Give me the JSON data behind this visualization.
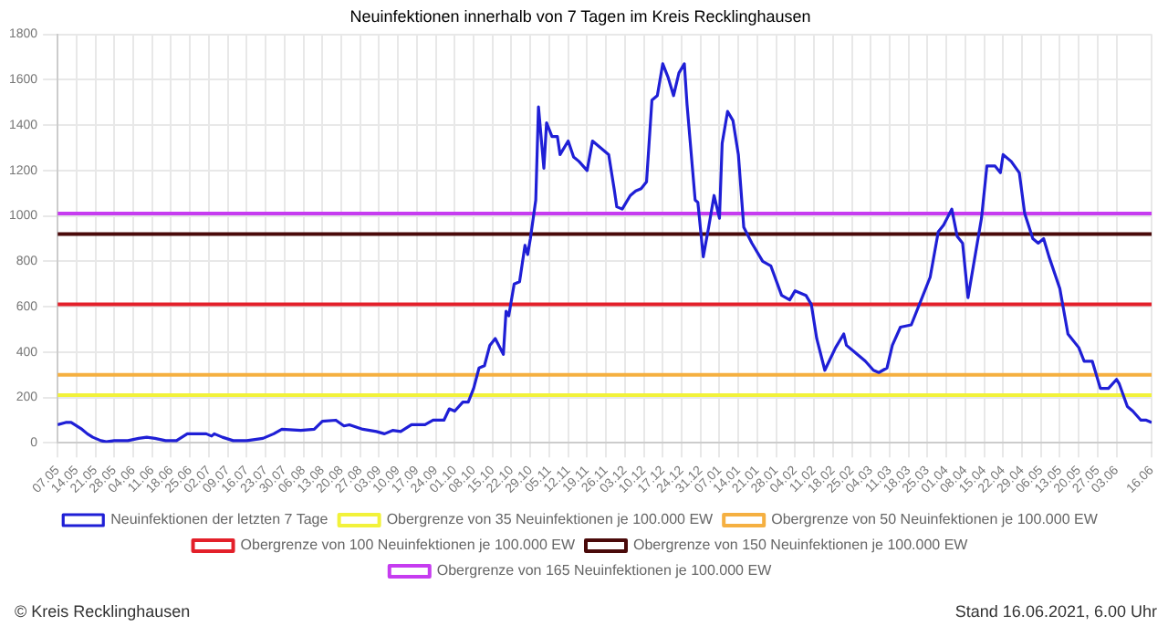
{
  "chart_data": {
    "type": "line",
    "title": "Neuinfektionen innerhalb von 7 Tagen im Kreis Recklinghausen",
    "xlim": [
      "2020-05-07",
      "2021-06-16"
    ],
    "xticks": [
      {
        "value": "2020-05-07",
        "label": "07.05"
      },
      {
        "value": "2020-05-14",
        "label": "14.05"
      },
      {
        "value": "2020-05-21",
        "label": "21.05"
      },
      {
        "value": "2020-05-28",
        "label": "28.05"
      },
      {
        "value": "2020-06-04",
        "label": "04.06"
      },
      {
        "value": "2020-06-11",
        "label": "11.06"
      },
      {
        "value": "2020-06-18",
        "label": "18.06"
      },
      {
        "value": "2020-06-25",
        "label": "25.06"
      },
      {
        "value": "2020-07-02",
        "label": "02.07"
      },
      {
        "value": "2020-07-09",
        "label": "09.07"
      },
      {
        "value": "2020-07-16",
        "label": "16.07"
      },
      {
        "value": "2020-07-23",
        "label": "23.07"
      },
      {
        "value": "2020-07-30",
        "label": "30.07"
      },
      {
        "value": "2020-08-06",
        "label": "06.08"
      },
      {
        "value": "2020-08-13",
        "label": "13.08"
      },
      {
        "value": "2020-08-20",
        "label": "20.08"
      },
      {
        "value": "2020-08-27",
        "label": "27.08"
      },
      {
        "value": "2020-09-03",
        "label": "03.09"
      },
      {
        "value": "2020-09-10",
        "label": "10.09"
      },
      {
        "value": "2020-09-17",
        "label": "17.09"
      },
      {
        "value": "2020-09-24",
        "label": "24.09"
      },
      {
        "value": "2020-10-01",
        "label": "01.10"
      },
      {
        "value": "2020-10-08",
        "label": "08.10"
      },
      {
        "value": "2020-10-15",
        "label": "15.10"
      },
      {
        "value": "2020-10-22",
        "label": "22.10"
      },
      {
        "value": "2020-10-29",
        "label": "29.10"
      },
      {
        "value": "2020-11-05",
        "label": "05.11"
      },
      {
        "value": "2020-11-12",
        "label": "12.11"
      },
      {
        "value": "2020-11-19",
        "label": "19.11"
      },
      {
        "value": "2020-11-26",
        "label": "26.11"
      },
      {
        "value": "2020-12-03",
        "label": "03.12"
      },
      {
        "value": "2020-12-10",
        "label": "10.12"
      },
      {
        "value": "2020-12-17",
        "label": "17.12"
      },
      {
        "value": "2020-12-24",
        "label": "24.12"
      },
      {
        "value": "2020-12-31",
        "label": "31.12"
      },
      {
        "value": "2021-01-07",
        "label": "07.01"
      },
      {
        "value": "2021-01-14",
        "label": "14.01"
      },
      {
        "value": "2021-01-21",
        "label": "21.01"
      },
      {
        "value": "2021-01-28",
        "label": "28.01"
      },
      {
        "value": "2021-02-04",
        "label": "04.02"
      },
      {
        "value": "2021-02-11",
        "label": "11.02"
      },
      {
        "value": "2021-02-18",
        "label": "18.02"
      },
      {
        "value": "2021-02-25",
        "label": "25.02"
      },
      {
        "value": "2021-03-04",
        "label": "04.03"
      },
      {
        "value": "2021-03-11",
        "label": "11.03"
      },
      {
        "value": "2021-03-18",
        "label": "18.03"
      },
      {
        "value": "2021-03-25",
        "label": "25.03"
      },
      {
        "value": "2021-04-01",
        "label": "01.04"
      },
      {
        "value": "2021-04-08",
        "label": "08.04"
      },
      {
        "value": "2021-04-15",
        "label": "15.04"
      },
      {
        "value": "2021-04-22",
        "label": "22.04"
      },
      {
        "value": "2021-04-29",
        "label": "29.04"
      },
      {
        "value": "2021-05-06",
        "label": "06.05"
      },
      {
        "value": "2021-05-13",
        "label": "13.05"
      },
      {
        "value": "2021-05-20",
        "label": "20.05"
      },
      {
        "value": "2021-05-27",
        "label": "27.05"
      },
      {
        "value": "2021-06-03",
        "label": "03.06"
      },
      {
        "value": "2021-06-16",
        "label": "16.06"
      }
    ],
    "ylim": [
      0,
      1800
    ],
    "yticks": [
      0,
      200,
      400,
      600,
      800,
      1000,
      1200,
      1400,
      1600,
      1800
    ],
    "grid": true,
    "legend": "bottom",
    "marker": "none",
    "line_style": "solid",
    "annotations": [
      "© Kreis Recklinghausen",
      "Stand 16.06.2021, 6.00 Uhr"
    ],
    "series": [
      {
        "name": "Neuinfektionen der letzten 7 Tage",
        "color": "#1f1fd6",
        "x": [
          "2020-05-07",
          "2020-05-10",
          "2020-05-12",
          "2020-05-16",
          "2020-05-18",
          "2020-05-20",
          "2020-05-23",
          "2020-05-25",
          "2020-05-28",
          "2020-06-02",
          "2020-06-06",
          "2020-06-09",
          "2020-06-12",
          "2020-06-16",
          "2020-06-20",
          "2020-06-24",
          "2020-06-27",
          "2020-07-01",
          "2020-07-03",
          "2020-07-04",
          "2020-07-07",
          "2020-07-11",
          "2020-07-16",
          "2020-07-22",
          "2020-07-26",
          "2020-07-29",
          "2020-08-05",
          "2020-08-10",
          "2020-08-13",
          "2020-08-18",
          "2020-08-21",
          "2020-08-23",
          "2020-08-28",
          "2020-09-02",
          "2020-09-05",
          "2020-09-08",
          "2020-09-11",
          "2020-09-15",
          "2020-09-20",
          "2020-09-23",
          "2020-09-27",
          "2020-09-29",
          "2020-10-01",
          "2020-10-04",
          "2020-10-06",
          "2020-10-08",
          "2020-10-10",
          "2020-10-12",
          "2020-10-14",
          "2020-10-16",
          "2020-10-19",
          "2020-10-20",
          "2020-10-21",
          "2020-10-23",
          "2020-10-25",
          "2020-10-27",
          "2020-10-28",
          "2020-10-29",
          "2020-10-31",
          "2020-11-01",
          "2020-11-03",
          "2020-11-04",
          "2020-11-06",
          "2020-11-08",
          "2020-11-09",
          "2020-11-12",
          "2020-11-14",
          "2020-11-16",
          "2020-11-19",
          "2020-11-21",
          "2020-11-24",
          "2020-11-27",
          "2020-11-29",
          "2020-11-30",
          "2020-12-02",
          "2020-12-05",
          "2020-12-07",
          "2020-12-09",
          "2020-12-11",
          "2020-12-13",
          "2020-12-15",
          "2020-12-17",
          "2020-12-19",
          "2020-12-21",
          "2020-12-23",
          "2020-12-25",
          "2020-12-26",
          "2020-12-29",
          "2020-12-30",
          "2021-01-01",
          "2021-01-03",
          "2021-01-05",
          "2021-01-07",
          "2021-01-08",
          "2021-01-10",
          "2021-01-12",
          "2021-01-14",
          "2021-01-16",
          "2021-01-19",
          "2021-01-23",
          "2021-01-26",
          "2021-01-30",
          "2021-02-02",
          "2021-02-04",
          "2021-02-08",
          "2021-02-10",
          "2021-02-12",
          "2021-02-15",
          "2021-02-17",
          "2021-02-19",
          "2021-02-22",
          "2021-02-23",
          "2021-02-26",
          "2021-03-02",
          "2021-03-05",
          "2021-03-07",
          "2021-03-10",
          "2021-03-12",
          "2021-03-15",
          "2021-03-19",
          "2021-03-22",
          "2021-03-26",
          "2021-03-29",
          "2021-03-31",
          "2021-04-03",
          "2021-04-05",
          "2021-04-07",
          "2021-04-09",
          "2021-04-11",
          "2021-04-14",
          "2021-04-16",
          "2021-04-19",
          "2021-04-21",
          "2021-04-22",
          "2021-04-25",
          "2021-04-28",
          "2021-04-30",
          "2021-05-03",
          "2021-05-05",
          "2021-05-07",
          "2021-05-09",
          "2021-05-13",
          "2021-05-16",
          "2021-05-20",
          "2021-05-22",
          "2021-05-25",
          "2021-05-28",
          "2021-05-31",
          "2021-06-03",
          "2021-06-04",
          "2021-06-07",
          "2021-06-09",
          "2021-06-12",
          "2021-06-14",
          "2021-06-16"
        ],
        "values": [
          80,
          90,
          90,
          60,
          40,
          25,
          10,
          5,
          10,
          10,
          20,
          25,
          20,
          10,
          10,
          40,
          40,
          40,
          30,
          40,
          25,
          10,
          10,
          20,
          40,
          60,
          55,
          60,
          95,
          100,
          75,
          80,
          60,
          50,
          40,
          55,
          50,
          80,
          80,
          100,
          100,
          150,
          140,
          180,
          180,
          240,
          330,
          340,
          430,
          460,
          390,
          580,
          560,
          700,
          710,
          870,
          830,
          900,
          1070,
          1480,
          1210,
          1410,
          1350,
          1350,
          1270,
          1330,
          1260,
          1240,
          1200,
          1330,
          1300,
          1270,
          1120,
          1040,
          1030,
          1090,
          1110,
          1120,
          1150,
          1510,
          1530,
          1670,
          1610,
          1530,
          1630,
          1670,
          1490,
          1070,
          1060,
          820,
          950,
          1090,
          990,
          1320,
          1460,
          1420,
          1270,
          950,
          880,
          800,
          780,
          650,
          630,
          670,
          650,
          610,
          460,
          320,
          370,
          420,
          480,
          430,
          400,
          360,
          320,
          310,
          330,
          430,
          510,
          520,
          610,
          730,
          930,
          960,
          1030,
          910,
          880,
          640,
          780,
          990,
          1220,
          1220,
          1190,
          1270,
          1240,
          1190,
          1010,
          900,
          880,
          900,
          820,
          680,
          480,
          420,
          360,
          360,
          240,
          240,
          280,
          260,
          160,
          140,
          100,
          100,
          90
        ]
      },
      {
        "name": "Obergrenze von 35 Neuinfektionen je 100.000 EW",
        "color": "#f2f23a",
        "x": [
          "2020-05-07",
          "2021-06-16"
        ],
        "values": [
          210,
          210
        ]
      },
      {
        "name": "Obergrenze von 50 Neuinfektionen je 100.000 EW",
        "color": "#f5b041",
        "x": [
          "2020-05-07",
          "2021-06-16"
        ],
        "values": [
          300,
          300
        ]
      },
      {
        "name": "Obergrenze von 100 Neuinfektionen je 100.000 EW",
        "color": "#e3202a",
        "x": [
          "2020-05-07",
          "2021-06-16"
        ],
        "values": [
          610,
          610
        ]
      },
      {
        "name": "Obergrenze von 150 Neuinfektionen je 100.000 EW",
        "color": "#4a0a0a",
        "x": [
          "2020-05-07",
          "2021-06-16"
        ],
        "values": [
          920,
          920
        ]
      },
      {
        "name": "Obergrenze von 165 Neuinfektionen je 100.000 EW",
        "color": "#c63cf0",
        "x": [
          "2020-05-07",
          "2021-06-16"
        ],
        "values": [
          1010,
          1010
        ]
      }
    ]
  }
}
